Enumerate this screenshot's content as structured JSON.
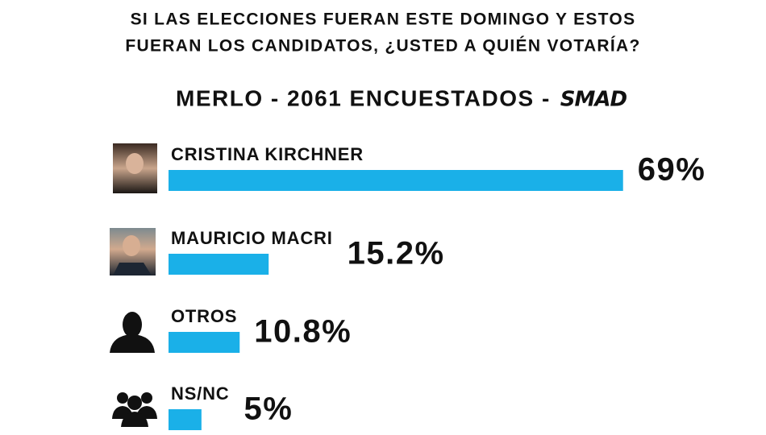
{
  "chart_data": {
    "type": "bar",
    "orientation": "horizontal",
    "title": [
      "SI LAS ELECCIONES FUERAN ESTE DOMINGO Y ESTOS",
      "FUERAN LOS CANDIDATOS, ¿USTED A QUIÉN VOTARÍA?"
    ],
    "subtitle": "MERLO - 2061 ENCUESTADOS -",
    "source": "SMAD",
    "categories": [
      "CRISTINA KIRCHNER",
      "MAURICIO MACRI",
      "OTROS",
      "NS/NC"
    ],
    "values": [
      69,
      15.2,
      10.8,
      5
    ],
    "value_labels": [
      "69%",
      "15.2%",
      "10.8%",
      "5%"
    ],
    "color": "#1ab0e8"
  }
}
